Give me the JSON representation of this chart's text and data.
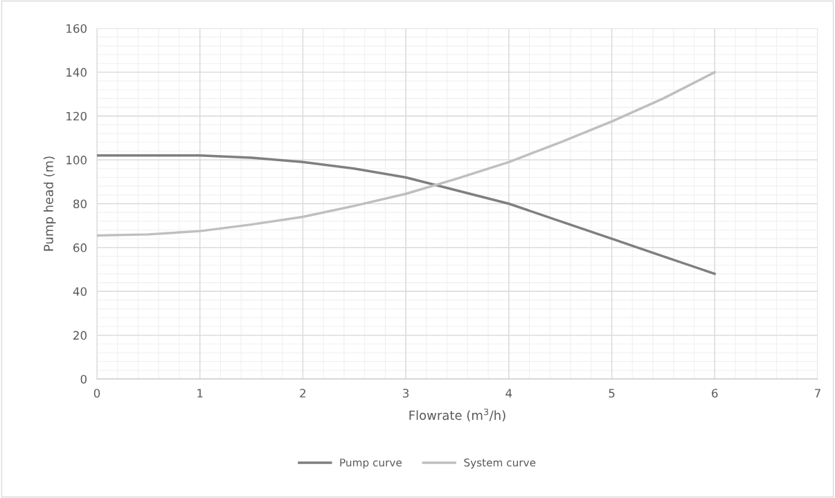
{
  "chart_data": {
    "type": "line",
    "xlabel": "Flowrate (m$^{3}$/h)",
    "ylabel": "Pump head (m)",
    "xlim": [
      0,
      7
    ],
    "xticks": [
      0,
      1,
      2,
      3,
      4,
      5,
      6,
      7
    ],
    "ylim": [
      0,
      160
    ],
    "yticks": [
      0,
      20,
      40,
      60,
      80,
      100,
      120,
      140,
      160
    ],
    "grid": true,
    "legend": "bottom",
    "marker": "none",
    "line_style": "solid",
    "series": [
      {
        "name": "Pump curve",
        "color": "#7f7f7f",
        "x": [
          0,
          0.5,
          1,
          1.5,
          2,
          2.5,
          3,
          3.5,
          4,
          4.5,
          5,
          5.5,
          6
        ],
        "values": [
          102,
          102,
          102,
          101,
          99,
          96,
          92,
          86,
          80,
          72,
          64,
          56,
          48
        ]
      },
      {
        "name": "System curve",
        "color": "#bfbfbf",
        "x": [
          0,
          0.5,
          1,
          1.5,
          2,
          2.5,
          3,
          3.5,
          4,
          4.5,
          5,
          5.5,
          6
        ],
        "values": [
          65.5,
          66,
          67.5,
          70.5,
          74,
          79,
          84.5,
          91.5,
          99,
          108,
          117.5,
          128,
          140
        ]
      }
    ]
  }
}
